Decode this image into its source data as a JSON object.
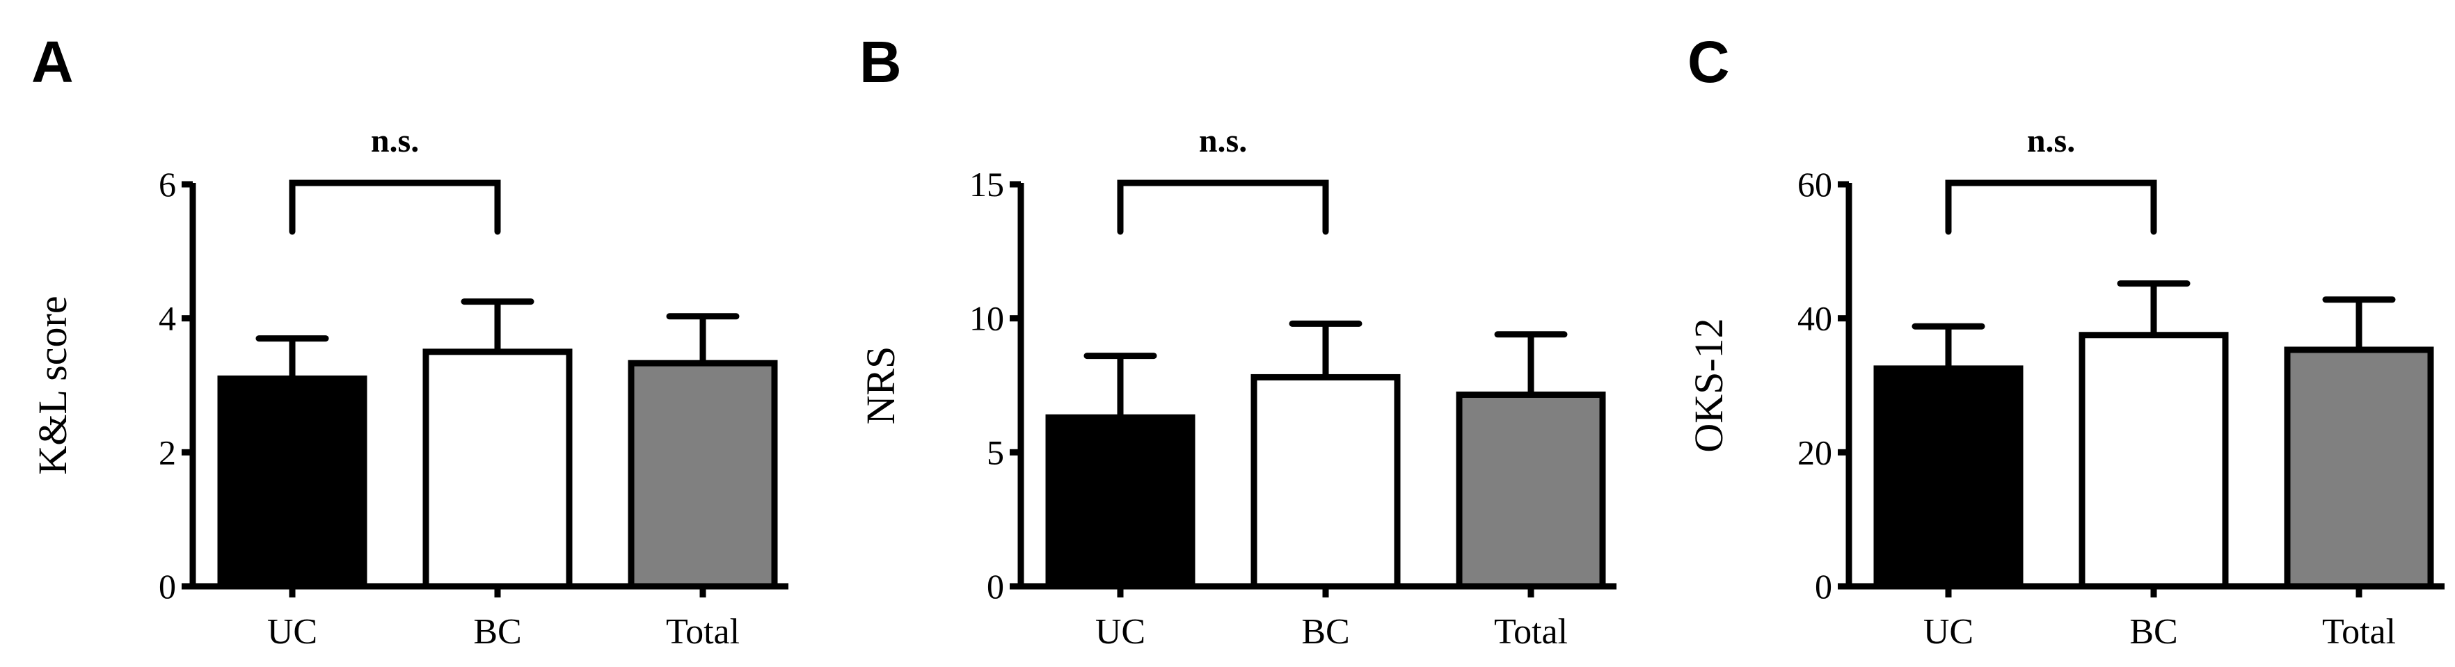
{
  "chart_data": [
    {
      "panel": "A",
      "type": "bar",
      "categories": [
        "UC",
        "BC",
        "Total"
      ],
      "values": [
        3.1,
        3.5,
        3.33
      ],
      "errors": [
        0.6,
        0.75,
        0.7
      ],
      "ylabel": "K&L score",
      "xlabel": "",
      "ylim": [
        0,
        6
      ],
      "yticks": [
        0,
        2,
        4,
        6
      ],
      "significance": {
        "between": [
          "UC",
          "BC"
        ],
        "label": "n.s."
      }
    },
    {
      "panel": "B",
      "type": "bar",
      "categories": [
        "UC",
        "BC",
        "Total"
      ],
      "values": [
        6.3,
        7.8,
        7.15
      ],
      "errors": [
        2.3,
        2.0,
        2.25
      ],
      "ylabel": "NRS",
      "xlabel": "",
      "ylim": [
        0,
        15
      ],
      "yticks": [
        0,
        5,
        10,
        15
      ],
      "significance": {
        "between": [
          "UC",
          "BC"
        ],
        "label": "n.s."
      }
    },
    {
      "panel": "C",
      "type": "bar",
      "categories": [
        "UC",
        "BC",
        "Total"
      ],
      "values": [
        32.5,
        37.5,
        35.3
      ],
      "errors": [
        6.3,
        7.7,
        7.5
      ],
      "ylabel": "OKS-12",
      "xlabel": "",
      "ylim": [
        0,
        60
      ],
      "yticks": [
        0,
        20,
        40,
        60
      ],
      "significance": {
        "between": [
          "UC",
          "BC"
        ],
        "label": "n.s."
      }
    }
  ],
  "colors": {
    "UC": "#000000",
    "BC": "#ffffff",
    "Total": "#808080",
    "stroke": "#000000"
  }
}
